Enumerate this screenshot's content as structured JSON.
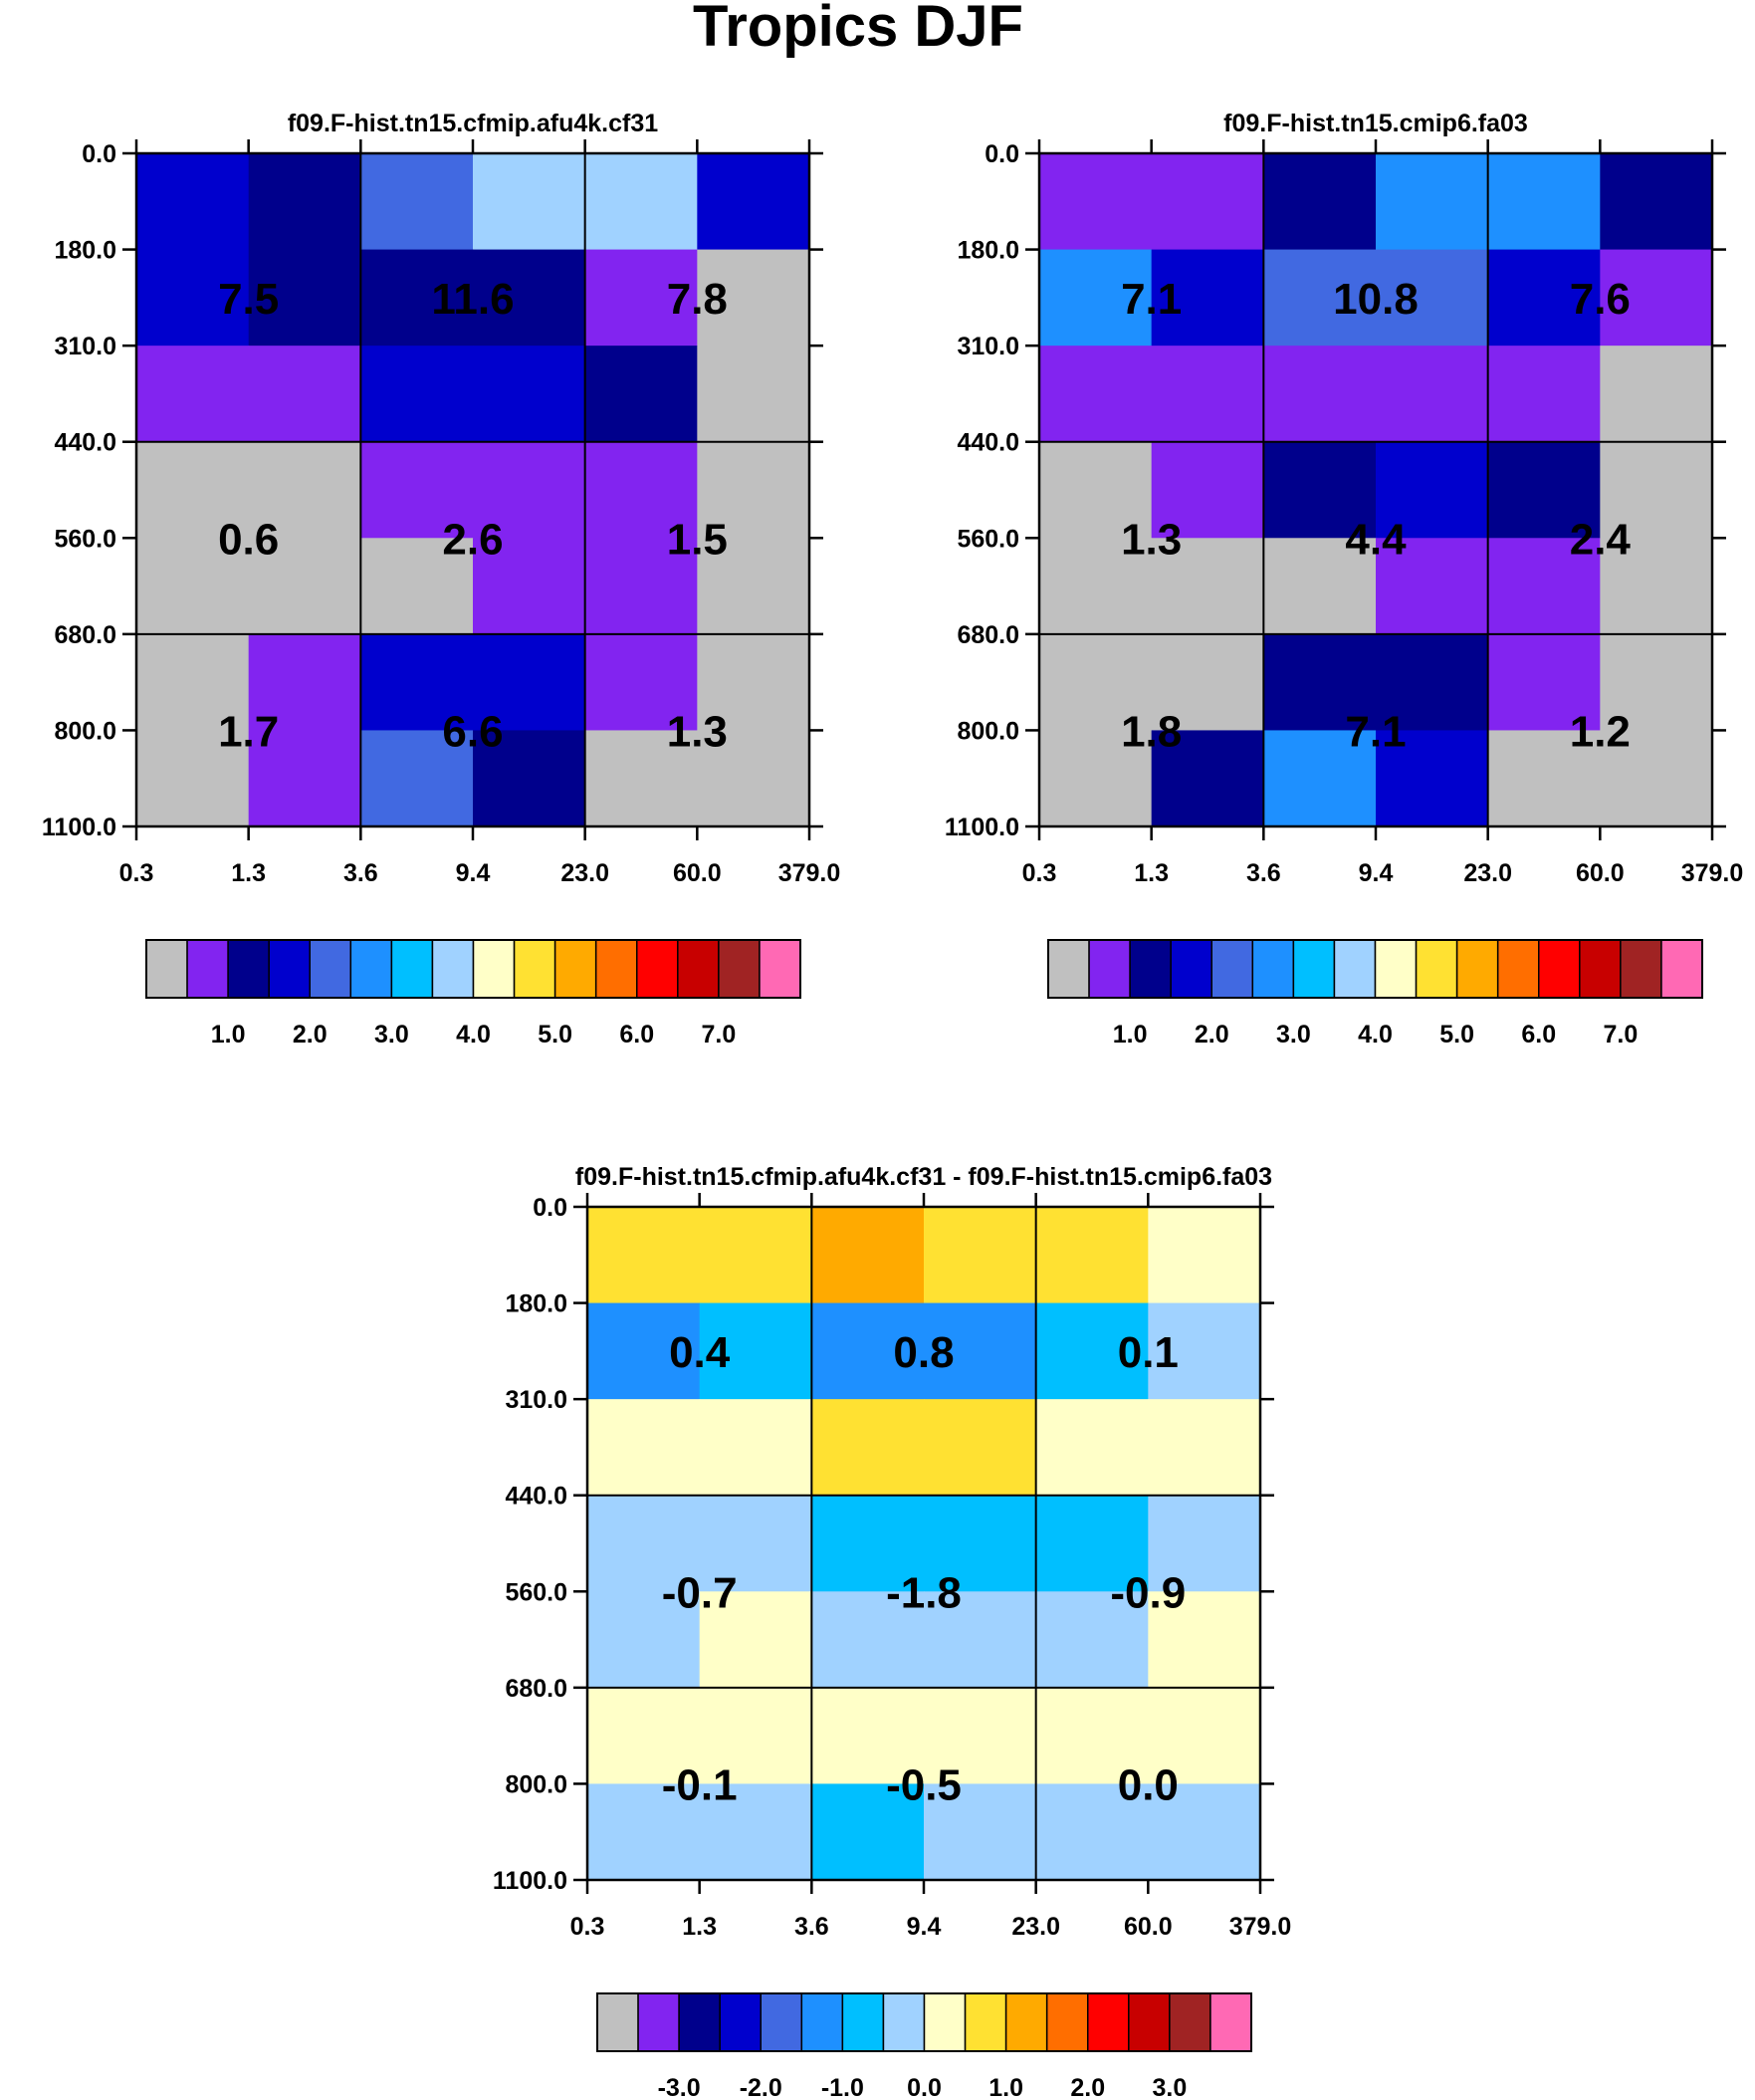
{
  "figure_title": "Tropics DJF",
  "palette": [
    "#c0c0c0",
    "#8224f0",
    "#00008c",
    "#0000cd",
    "#4169e1",
    "#1e90ff",
    "#00bfff",
    "#a0d2ff",
    "#ffffc8",
    "#ffe132",
    "#ffaa00",
    "#ff6e00",
    "#ff0000",
    "#c80000",
    "#a02323",
    "#ff69b4"
  ],
  "chart_data": [
    {
      "type": "heatmap",
      "title": "f09.F-hist.tn15.cfmip.afu4k.cf31",
      "x_ticks": [
        "0.3",
        "1.3",
        "3.6",
        "9.4",
        "23.0",
        "60.0",
        "379.0"
      ],
      "y_ticks": [
        "0.0",
        "180.0",
        "310.0",
        "440.0",
        "560.0",
        "680.0",
        "800.0",
        "1100.0"
      ],
      "cell_color_index": [
        [
          3,
          2,
          4,
          7,
          7,
          3
        ],
        [
          3,
          2,
          2,
          2,
          1,
          0
        ],
        [
          1,
          1,
          3,
          3,
          2,
          0
        ],
        [
          0,
          0,
          1,
          1,
          1,
          0
        ],
        [
          0,
          0,
          0,
          1,
          1,
          0
        ],
        [
          0,
          1,
          3,
          3,
          1,
          0
        ],
        [
          0,
          1,
          4,
          2,
          0,
          0
        ]
      ],
      "group_labels": [
        [
          "7.5",
          "11.6",
          "7.8"
        ],
        [
          "0.6",
          "2.6",
          "1.5"
        ],
        [
          "1.7",
          "6.6",
          "1.3"
        ]
      ],
      "colorbar_labels": [
        "1.0",
        "2.0",
        "3.0",
        "4.0",
        "5.0",
        "6.0",
        "7.0"
      ]
    },
    {
      "type": "heatmap",
      "title": "f09.F-hist.tn15.cmip6.fa03",
      "x_ticks": [
        "0.3",
        "1.3",
        "3.6",
        "9.4",
        "23.0",
        "60.0",
        "379.0"
      ],
      "y_ticks": [
        "0.0",
        "180.0",
        "310.0",
        "440.0",
        "560.0",
        "680.0",
        "800.0",
        "1100.0"
      ],
      "cell_color_index": [
        [
          1,
          1,
          2,
          5,
          5,
          2
        ],
        [
          5,
          3,
          4,
          4,
          3,
          1
        ],
        [
          1,
          1,
          1,
          1,
          1,
          0
        ],
        [
          0,
          1,
          2,
          3,
          2,
          0
        ],
        [
          0,
          0,
          0,
          1,
          1,
          0
        ],
        [
          0,
          0,
          2,
          2,
          1,
          0
        ],
        [
          0,
          2,
          5,
          3,
          0,
          0
        ]
      ],
      "group_labels": [
        [
          "7.1",
          "10.8",
          "7.6"
        ],
        [
          "1.3",
          "4.4",
          "2.4"
        ],
        [
          "1.8",
          "7.1",
          "1.2"
        ]
      ],
      "colorbar_labels": [
        "1.0",
        "2.0",
        "3.0",
        "4.0",
        "5.0",
        "6.0",
        "7.0"
      ]
    },
    {
      "type": "heatmap",
      "title": "f09.F-hist.tn15.cfmip.afu4k.cf31 - f09.F-hist.tn15.cmip6.fa03",
      "x_ticks": [
        "0.3",
        "1.3",
        "3.6",
        "9.4",
        "23.0",
        "60.0",
        "379.0"
      ],
      "y_ticks": [
        "0.0",
        "180.0",
        "310.0",
        "440.0",
        "560.0",
        "680.0",
        "800.0",
        "1100.0"
      ],
      "cell_color_index": [
        [
          9,
          9,
          10,
          9,
          9,
          8
        ],
        [
          5,
          6,
          5,
          5,
          6,
          7
        ],
        [
          8,
          8,
          9,
          9,
          8,
          8
        ],
        [
          7,
          7,
          6,
          6,
          6,
          7
        ],
        [
          7,
          8,
          7,
          7,
          7,
          8
        ],
        [
          8,
          8,
          8,
          8,
          8,
          8
        ],
        [
          7,
          7,
          6,
          7,
          7,
          7
        ]
      ],
      "group_labels": [
        [
          "0.4",
          "0.8",
          "0.1"
        ],
        [
          "-0.7",
          "-1.8",
          "-0.9"
        ],
        [
          "-0.1",
          "-0.5",
          "0.0"
        ]
      ],
      "colorbar_labels": [
        "-3.0",
        "-2.0",
        "-1.0",
        "0.0",
        "1.0",
        "2.0",
        "3.0"
      ]
    }
  ]
}
